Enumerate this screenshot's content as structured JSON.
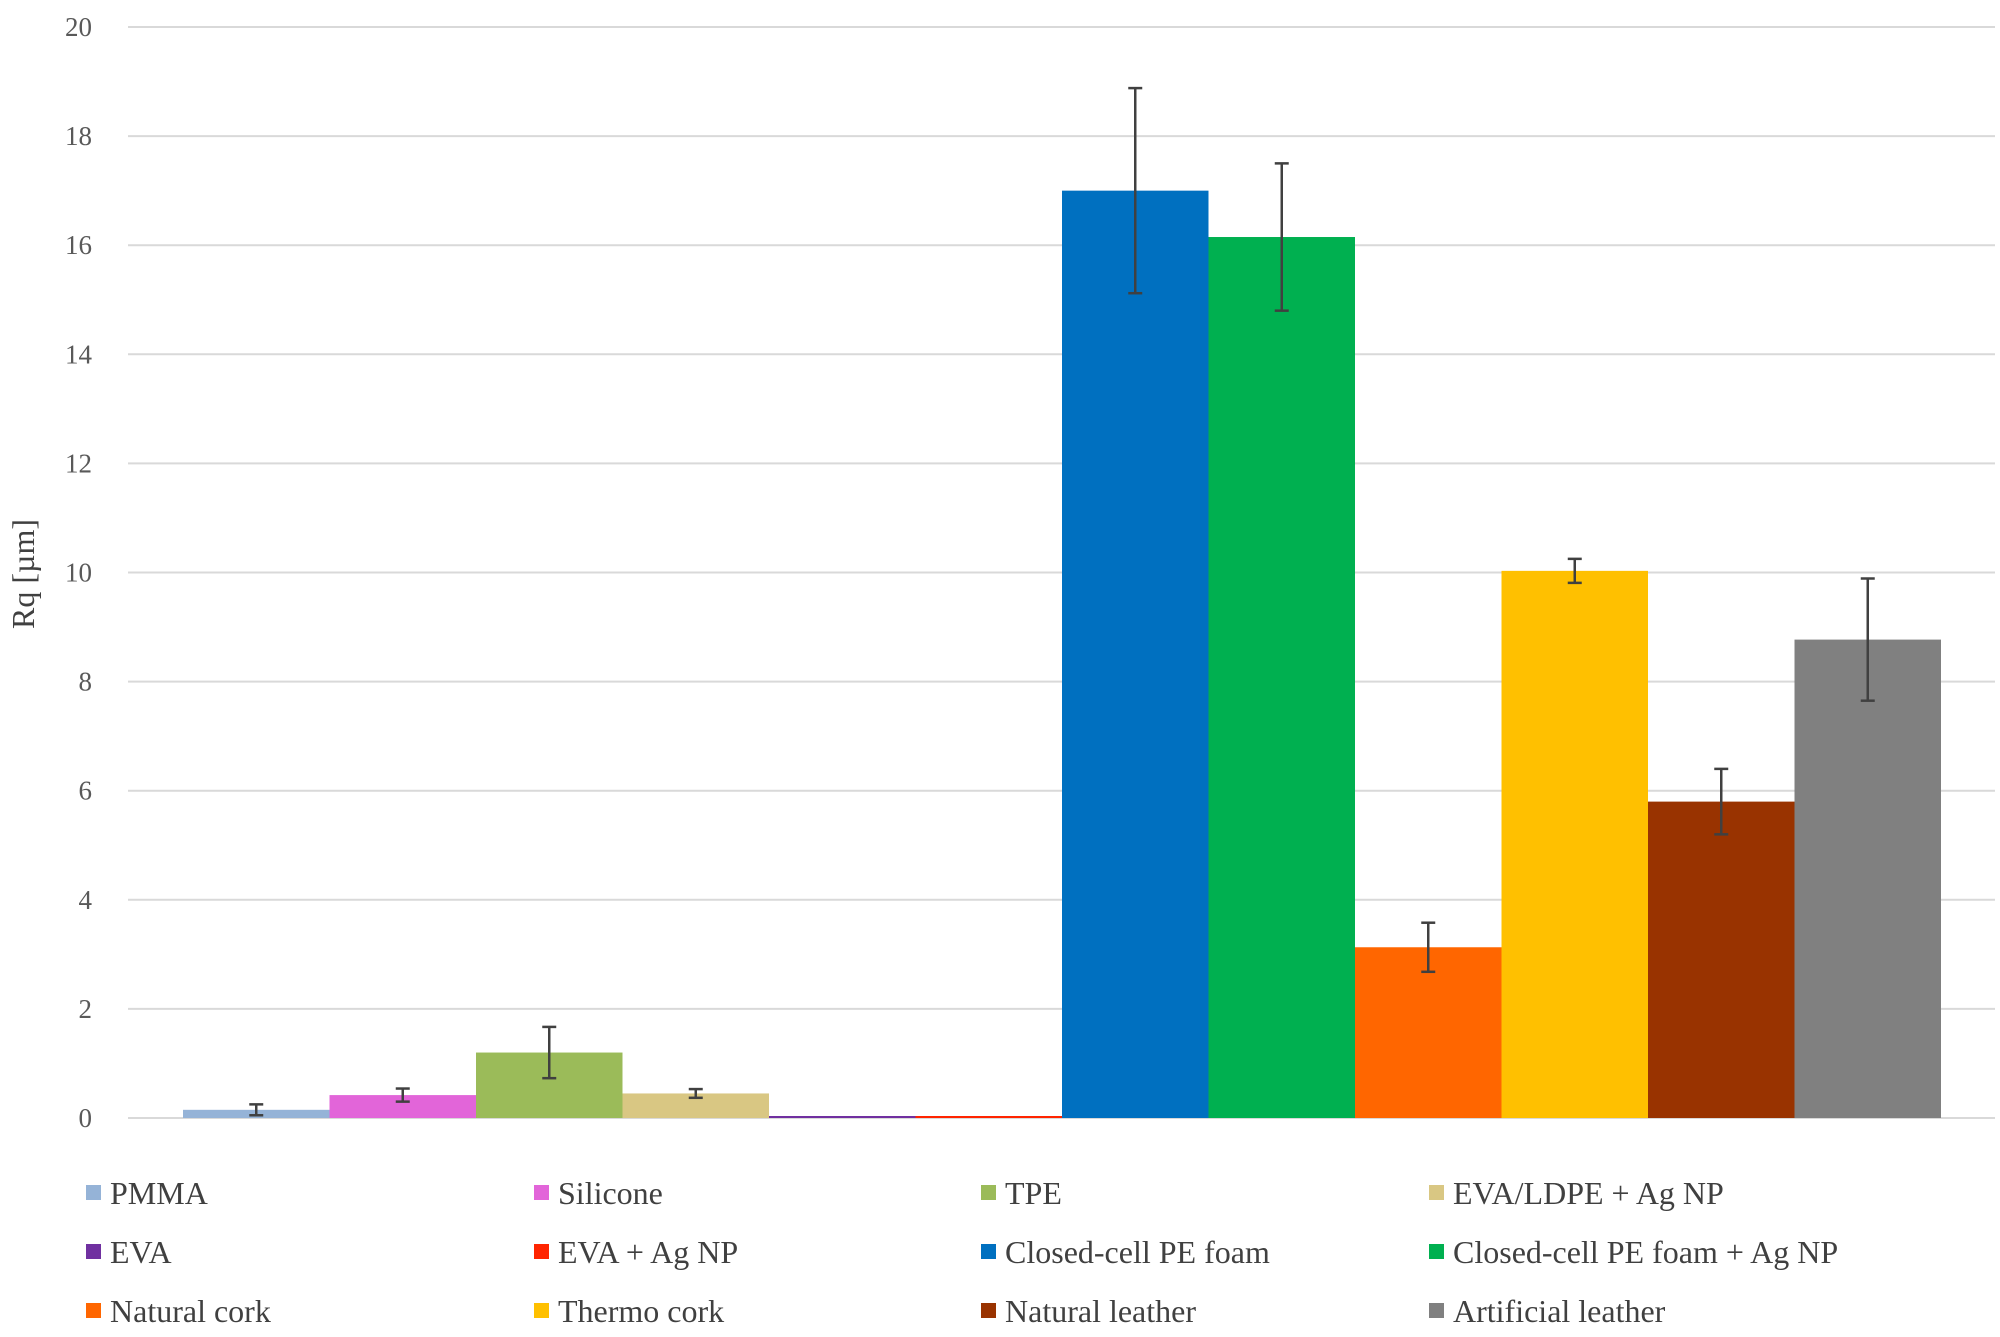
{
  "chart_data": {
    "type": "bar",
    "title": "",
    "xlabel": "",
    "ylabel": "Rq [µm]",
    "ylim": [
      0,
      20
    ],
    "ytick_step": 2,
    "yticks": [
      "0",
      "2",
      "4",
      "6",
      "8",
      "10",
      "12",
      "14",
      "16",
      "18",
      "20"
    ],
    "grid": true,
    "legend_position": "bottom",
    "series": [
      {
        "name": "PMMA",
        "value": 0.15,
        "error": 0.1,
        "color": "#95b3d7"
      },
      {
        "name": "Silicone",
        "value": 0.42,
        "error": 0.12,
        "color": "#e265d9"
      },
      {
        "name": "TPE",
        "value": 1.2,
        "error": 0.47,
        "color": "#9bbb59"
      },
      {
        "name": "EVA/LDPE + Ag NP",
        "value": 0.45,
        "error": 0.08,
        "color": "#d9c783"
      },
      {
        "name": "EVA",
        "value": 0.02,
        "error": 0,
        "color": "#7030a0"
      },
      {
        "name": "EVA + Ag NP",
        "value": 0.03,
        "error": 0,
        "color": "#ff2400"
      },
      {
        "name": "Closed-cell PE foam",
        "value": 17.0,
        "error": 1.88,
        "color": "#0070c0"
      },
      {
        "name": "Closed-cell PE foam + Ag NP",
        "value": 16.15,
        "error": 1.35,
        "color": "#00b050"
      },
      {
        "name": "Natural cork",
        "value": 3.13,
        "error": 0.45,
        "color": "#ff6600"
      },
      {
        "name": "Thermo cork",
        "value": 10.03,
        "error": 0.22,
        "color": "#ffc000"
      },
      {
        "name": "Natural leather",
        "value": 5.8,
        "error": 0.6,
        "color": "#993300"
      },
      {
        "name": "Artificial leather",
        "value": 8.77,
        "error": 1.12,
        "color": "#808080"
      }
    ]
  }
}
